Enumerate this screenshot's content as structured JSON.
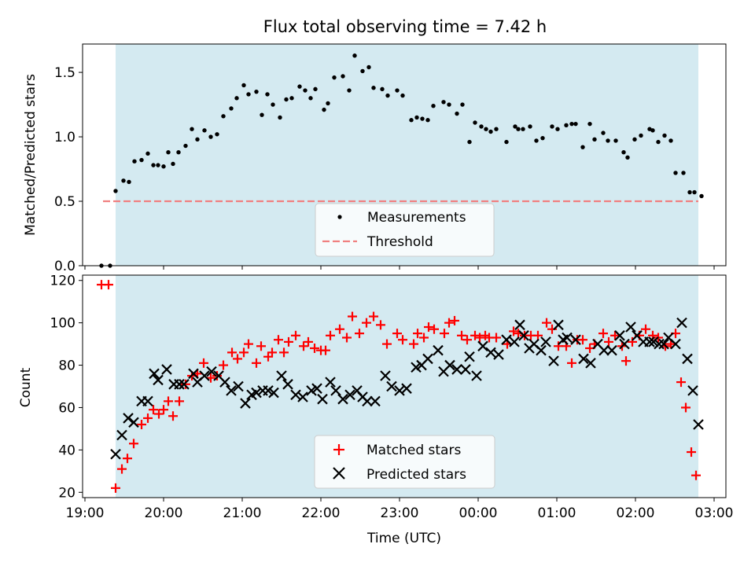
{
  "title": "Flux total observing time = 7.42 h",
  "colors": {
    "shade": "#d4eaf1",
    "threshold": "#f08080",
    "measure": "#000000",
    "matched": "#ff0000",
    "predicted": "#000000"
  },
  "chart_data": [
    {
      "type": "scatter",
      "ylabel": "Matched/Predicted stars",
      "ylim": [
        0,
        1.72
      ],
      "yticks": [
        0.0,
        0.5,
        1.0,
        1.5
      ],
      "ytick_labels": [
        "0.0",
        "0.5",
        "1.0",
        "1.5"
      ],
      "xlim": [
        18.97,
        27.15
      ],
      "shaded_interval": [
        19.39,
        26.8
      ],
      "threshold": {
        "name": "Threshold",
        "value": 0.5,
        "x_range": [
          19.23,
          26.8
        ]
      },
      "legend": {
        "placement": "lower center",
        "entries": [
          "Measurements",
          "Threshold"
        ]
      },
      "series": [
        {
          "name": "Measurements",
          "x": [
            19.21,
            19.32,
            19.39,
            19.49,
            19.56,
            19.63,
            19.72,
            19.8,
            19.87,
            19.93,
            20.0,
            20.06,
            20.12,
            20.19,
            20.28,
            20.36,
            20.43,
            20.52,
            20.6,
            20.68,
            20.76,
            20.86,
            20.93,
            21.02,
            21.08,
            21.18,
            21.25,
            21.32,
            21.39,
            21.48,
            21.56,
            21.63,
            21.73,
            21.8,
            21.87,
            21.93,
            22.04,
            22.09,
            22.17,
            22.28,
            22.36,
            22.43,
            22.53,
            22.61,
            22.67,
            22.78,
            22.85,
            22.97,
            23.04,
            23.15,
            23.22,
            23.29,
            23.36,
            23.43,
            23.56,
            23.63,
            23.73,
            23.8,
            23.89,
            23.96,
            24.04,
            24.1,
            24.16,
            24.23,
            24.36,
            24.47,
            24.51,
            24.57,
            24.66,
            24.74,
            24.82,
            24.94,
            25.01,
            25.12,
            25.19,
            25.24,
            25.33,
            25.42,
            25.48,
            25.59,
            25.65,
            25.75,
            25.85,
            25.9,
            25.99,
            26.07,
            26.18,
            26.22,
            26.29,
            26.37,
            26.45,
            26.51,
            26.61,
            26.69,
            26.75,
            26.84
          ],
          "y": [
            0.0,
            0.0,
            0.58,
            0.66,
            0.65,
            0.81,
            0.82,
            0.87,
            0.78,
            0.78,
            0.77,
            0.88,
            0.79,
            0.88,
            0.93,
            1.06,
            0.98,
            1.05,
            1.0,
            1.02,
            1.16,
            1.22,
            1.3,
            1.4,
            1.33,
            1.35,
            1.17,
            1.33,
            1.25,
            1.15,
            1.29,
            1.3,
            1.39,
            1.36,
            1.3,
            1.37,
            1.21,
            1.26,
            1.46,
            1.47,
            1.36,
            1.63,
            1.51,
            1.54,
            1.38,
            1.37,
            1.32,
            1.36,
            1.32,
            1.13,
            1.15,
            1.14,
            1.13,
            1.24,
            1.27,
            1.25,
            1.18,
            1.25,
            0.96,
            1.11,
            1.08,
            1.06,
            1.04,
            1.06,
            0.96,
            1.08,
            1.06,
            1.06,
            1.08,
            0.97,
            0.99,
            1.08,
            1.06,
            1.09,
            1.1,
            1.1,
            0.92,
            1.1,
            0.98,
            1.03,
            0.97,
            0.97,
            0.88,
            0.84,
            0.98,
            1.01,
            1.06,
            1.05,
            0.96,
            1.01,
            0.97,
            0.72,
            0.72,
            0.57,
            0.57,
            0.54
          ]
        }
      ]
    },
    {
      "type": "scatter",
      "xlabel": "Time (UTC)",
      "ylabel": "Count",
      "ylim": [
        17.5,
        122.5
      ],
      "yticks": [
        20,
        40,
        60,
        80,
        100,
        120
      ],
      "ytick_labels": [
        "20",
        "40",
        "60",
        "80",
        "100",
        "120"
      ],
      "xlim": [
        18.97,
        27.15
      ],
      "xticks": [
        19,
        20,
        21,
        22,
        23,
        24,
        25,
        26,
        27
      ],
      "xtick_labels": [
        "19:00",
        "20:00",
        "21:00",
        "22:00",
        "23:00",
        "00:00",
        "01:00",
        "02:00",
        "03:00"
      ],
      "shaded_interval": [
        19.39,
        26.8
      ],
      "legend": {
        "placement": "lower center",
        "entries": [
          "Matched stars",
          "Predicted stars"
        ]
      },
      "series": [
        {
          "name": "Matched stars",
          "x": [
            19.21,
            19.3,
            19.39,
            19.47,
            19.54,
            19.62,
            19.72,
            19.8,
            19.87,
            19.94,
            20.0,
            20.06,
            20.12,
            20.2,
            20.28,
            20.36,
            20.43,
            20.51,
            20.6,
            20.68,
            20.76,
            20.87,
            20.94,
            21.02,
            21.08,
            21.18,
            21.24,
            21.33,
            21.38,
            21.46,
            21.53,
            21.59,
            21.68,
            21.78,
            21.84,
            21.92,
            22.0,
            22.06,
            22.12,
            22.24,
            22.33,
            22.4,
            22.49,
            22.58,
            22.67,
            22.76,
            22.84,
            22.97,
            23.04,
            23.18,
            23.23,
            23.31,
            23.37,
            23.44,
            23.57,
            23.63,
            23.7,
            23.79,
            23.86,
            23.96,
            24.02,
            24.09,
            24.14,
            24.23,
            24.37,
            24.45,
            24.51,
            24.59,
            24.67,
            24.76,
            24.87,
            24.94,
            25.02,
            25.12,
            25.19,
            25.26,
            25.33,
            25.42,
            25.48,
            25.59,
            25.66,
            25.74,
            25.83,
            25.88,
            25.96,
            26.05,
            26.13,
            26.22,
            26.29,
            26.38,
            26.45,
            26.51,
            26.58,
            26.64,
            26.71,
            26.77
          ],
          "y": [
            118,
            118,
            22,
            31,
            36,
            43,
            52,
            55,
            59,
            57,
            59,
            63,
            56,
            63,
            71,
            75,
            76,
            81,
            74,
            75,
            80,
            86,
            83,
            86,
            90,
            81,
            89,
            84,
            86,
            92,
            86,
            91,
            94,
            89,
            91,
            88,
            87,
            87,
            94,
            97,
            93,
            103,
            95,
            100,
            103,
            99,
            90,
            95,
            92,
            90,
            95,
            93,
            98,
            97,
            95,
            100,
            101,
            94,
            92,
            94,
            93,
            94,
            93,
            93,
            90,
            96,
            95,
            94,
            94,
            94,
            100,
            97,
            89,
            89,
            81,
            92,
            92,
            88,
            90,
            95,
            91,
            94,
            89,
            82,
            91,
            94,
            97,
            94,
            93,
            89,
            90,
            95,
            72,
            60,
            39,
            28
          ]
        },
        {
          "name": "Predicted stars",
          "x": [
            19.39,
            19.47,
            19.55,
            19.62,
            19.72,
            19.8,
            19.88,
            19.93,
            20.04,
            20.13,
            20.2,
            20.26,
            20.38,
            20.43,
            20.52,
            20.61,
            20.7,
            20.78,
            20.86,
            20.95,
            21.04,
            21.12,
            21.18,
            21.26,
            21.33,
            21.4,
            21.5,
            21.58,
            21.68,
            21.77,
            21.88,
            21.95,
            22.02,
            22.12,
            22.19,
            22.28,
            22.37,
            22.46,
            22.53,
            22.59,
            22.69,
            22.82,
            22.9,
            23.0,
            23.09,
            23.21,
            23.28,
            23.36,
            23.49,
            23.56,
            23.64,
            23.73,
            23.84,
            23.89,
            23.98,
            24.06,
            24.16,
            24.26,
            24.36,
            24.46,
            24.53,
            24.58,
            24.65,
            24.71,
            24.8,
            24.86,
            24.96,
            25.02,
            25.08,
            25.13,
            25.24,
            25.34,
            25.43,
            25.52,
            25.6,
            25.7,
            25.8,
            25.86,
            25.94,
            26.02,
            26.1,
            26.18,
            26.23,
            26.3,
            26.36,
            26.42,
            26.51,
            26.59,
            26.66,
            26.73,
            26.8
          ],
          "y": [
            38,
            47,
            55,
            53,
            63,
            63,
            76,
            73,
            78,
            71,
            71,
            71,
            76,
            72,
            75,
            77,
            75,
            72,
            68,
            70,
            62,
            66,
            67,
            68,
            68,
            67,
            75,
            71,
            66,
            65,
            68,
            69,
            64,
            72,
            68,
            64,
            66,
            68,
            65,
            63,
            63,
            75,
            70,
            68,
            69,
            79,
            80,
            83,
            87,
            77,
            80,
            78,
            78,
            84,
            75,
            89,
            86,
            85,
            92,
            91,
            99,
            94,
            88,
            90,
            87,
            91,
            82,
            99,
            92,
            93,
            92,
            83,
            81,
            90,
            87,
            87,
            94,
            90,
            98,
            94,
            91,
            91,
            91,
            90,
            90,
            93,
            90,
            100,
            83,
            68,
            52
          ]
        }
      ]
    }
  ]
}
